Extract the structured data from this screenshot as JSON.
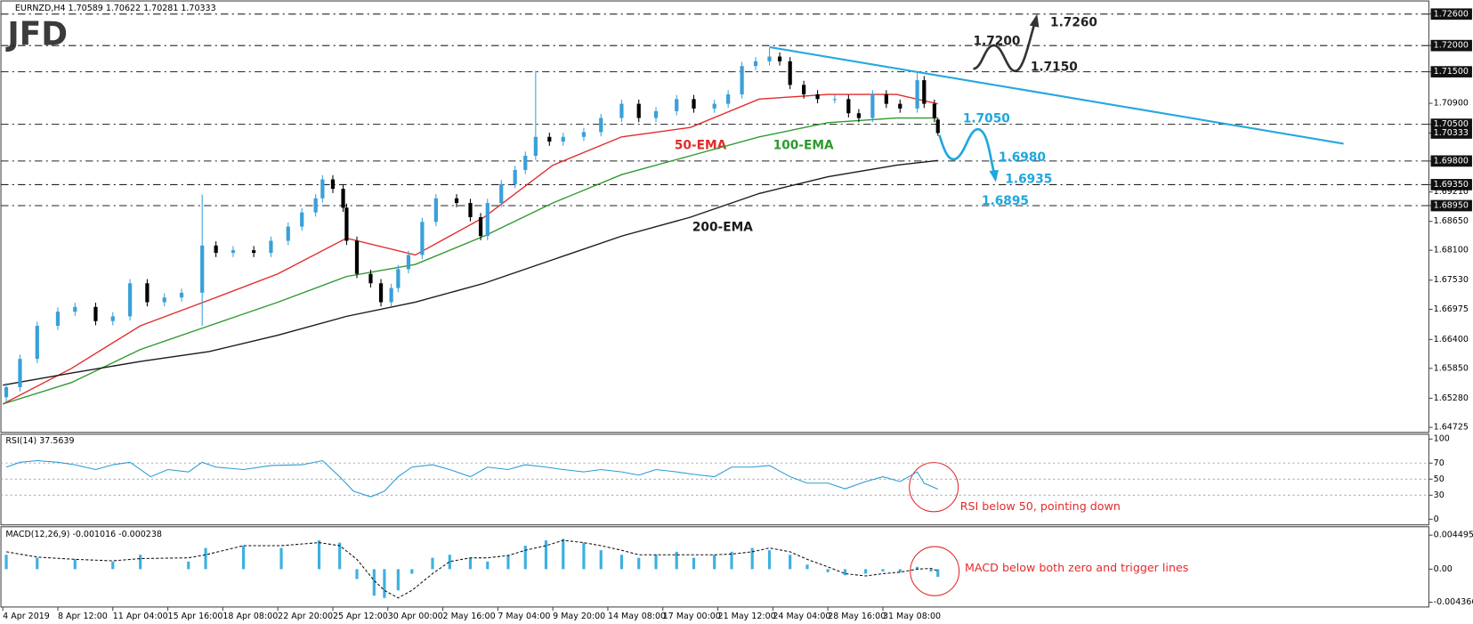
{
  "chart_data": [
    {
      "type": "candlestick",
      "title": "EURNZD,H4  1.70589 1.70622 1.70281 1.70333",
      "logo": "JFD",
      "up_color": "#3aa0d8",
      "down_color": "#000000",
      "xlim": [
        0,
        414
      ],
      "ylim": [
        1.6463,
        1.7285
      ],
      "yticks": [
        {
          "value": 1.726,
          "label": "1.72600",
          "boxed": true
        },
        {
          "value": 1.72,
          "label": "1.72000",
          "boxed": true
        },
        {
          "value": 1.715,
          "label": "1.71500",
          "boxed": true
        },
        {
          "value": 1.709,
          "label": "1.70900",
          "boxed": false
        },
        {
          "value": 1.705,
          "label": "1.70500",
          "boxed": true
        },
        {
          "value": 1.70333,
          "label": "1.70333",
          "boxed": true
        },
        {
          "value": 1.698,
          "label": "1.69800",
          "boxed": true
        },
        {
          "value": 1.6935,
          "label": "1.69350",
          "boxed": true
        },
        {
          "value": 1.6921,
          "label": "1.69210",
          "boxed": false
        },
        {
          "value": 1.6895,
          "label": "1.68950",
          "boxed": true
        },
        {
          "value": 1.6865,
          "label": "1.68650",
          "boxed": false
        },
        {
          "value": 1.681,
          "label": "1.68100",
          "boxed": false
        },
        {
          "value": 1.6753,
          "label": "1.67530",
          "boxed": false
        },
        {
          "value": 1.66975,
          "label": "1.66975",
          "boxed": false
        },
        {
          "value": 1.664,
          "label": "1.66400",
          "boxed": false
        },
        {
          "value": 1.6585,
          "label": "1.65850",
          "boxed": false
        },
        {
          "value": 1.6528,
          "label": "1.65280",
          "boxed": false
        },
        {
          "value": 1.64725,
          "label": "1.64725",
          "boxed": false
        }
      ],
      "x": [
        1,
        5,
        10,
        16,
        21,
        27,
        32,
        37,
        42,
        47,
        52,
        58,
        62,
        67,
        73,
        78,
        83,
        87,
        91,
        93,
        96,
        99,
        100,
        103,
        107,
        110,
        113,
        115,
        118,
        122,
        126,
        132,
        136,
        139,
        141,
        145,
        149,
        152,
        155,
        159,
        163,
        169,
        174,
        180,
        185,
        190,
        196,
        201,
        207,
        211,
        215,
        219,
        223,
        226,
        229,
        233,
        237,
        242,
        246,
        249,
        253,
        257,
        261,
        266,
        268,
        271,
        272
      ],
      "open": [
        1.653,
        1.6549,
        1.6603,
        1.6666,
        1.6693,
        1.6702,
        1.6675,
        1.6684,
        1.6747,
        1.6711,
        1.672,
        1.6729,
        1.6819,
        1.6805,
        1.681,
        1.6805,
        1.6828,
        1.6855,
        1.6882,
        1.6909,
        1.6945,
        1.6927,
        1.6891,
        1.6828,
        1.6765,
        1.6747,
        1.6711,
        1.6738,
        1.6774,
        1.6801,
        1.6864,
        1.6909,
        1.69,
        1.6873,
        1.6837,
        1.69,
        1.6936,
        1.6963,
        1.699,
        1.7026,
        1.7017,
        1.7026,
        1.7035,
        1.7062,
        1.7089,
        1.7062,
        1.7075,
        1.7098,
        1.708,
        1.7089,
        1.7107,
        1.7161,
        1.717,
        1.7179,
        1.717,
        1.7125,
        1.7107,
        1.7098,
        1.7098,
        1.7071,
        1.7062,
        1.7107,
        1.7089,
        1.708,
        1.7134,
        1.7089,
        1.70589
      ],
      "high": [
        1.6557,
        1.6611,
        1.6674,
        1.6701,
        1.671,
        1.671,
        1.6692,
        1.6755,
        1.6755,
        1.6728,
        1.6737,
        1.6916,
        1.6827,
        1.6818,
        1.6818,
        1.6836,
        1.6863,
        1.689,
        1.6917,
        1.6953,
        1.6953,
        1.6935,
        1.6899,
        1.6836,
        1.6773,
        1.6755,
        1.6746,
        1.6782,
        1.6809,
        1.6872,
        1.6917,
        1.6917,
        1.6908,
        1.6881,
        1.6908,
        1.6944,
        1.6971,
        1.6998,
        1.7152,
        1.7034,
        1.7034,
        1.7043,
        1.707,
        1.7097,
        1.7097,
        1.7083,
        1.7106,
        1.7106,
        1.7097,
        1.7115,
        1.7169,
        1.7178,
        1.7195,
        1.7187,
        1.7178,
        1.7133,
        1.7115,
        1.7106,
        1.7106,
        1.7079,
        1.7115,
        1.7115,
        1.7097,
        1.715,
        1.7142,
        1.7097,
        1.70622
      ],
      "low": [
        1.6522,
        1.6541,
        1.6595,
        1.6658,
        1.6685,
        1.6667,
        1.6667,
        1.6676,
        1.6703,
        1.6703,
        1.6712,
        1.6666,
        1.6797,
        1.6797,
        1.6797,
        1.6797,
        1.682,
        1.6847,
        1.6874,
        1.6901,
        1.6919,
        1.6883,
        1.682,
        1.6757,
        1.6739,
        1.6703,
        1.6703,
        1.673,
        1.6766,
        1.6793,
        1.6856,
        1.6892,
        1.6865,
        1.6829,
        1.6829,
        1.6892,
        1.6928,
        1.6955,
        1.6982,
        1.7009,
        1.7009,
        1.7018,
        1.7027,
        1.7054,
        1.7054,
        1.7054,
        1.7067,
        1.7072,
        1.7072,
        1.7081,
        1.7099,
        1.7153,
        1.7162,
        1.7162,
        1.7117,
        1.7099,
        1.709,
        1.709,
        1.7063,
        1.7054,
        1.7054,
        1.7081,
        1.7072,
        1.7072,
        1.7081,
        1.7054,
        1.70281
      ],
      "close": [
        1.6549,
        1.6603,
        1.6666,
        1.6693,
        1.6702,
        1.6675,
        1.6684,
        1.6747,
        1.6711,
        1.672,
        1.6729,
        1.6819,
        1.6805,
        1.681,
        1.6805,
        1.6828,
        1.6855,
        1.6882,
        1.6909,
        1.6945,
        1.6927,
        1.6891,
        1.6828,
        1.6765,
        1.6747,
        1.6711,
        1.6738,
        1.6774,
        1.6801,
        1.6864,
        1.6909,
        1.69,
        1.6873,
        1.6837,
        1.69,
        1.6936,
        1.6963,
        1.699,
        1.7026,
        1.7017,
        1.7026,
        1.7035,
        1.7062,
        1.7089,
        1.7062,
        1.7075,
        1.7098,
        1.708,
        1.7089,
        1.7107,
        1.7161,
        1.717,
        1.7179,
        1.717,
        1.7125,
        1.7107,
        1.7098,
        1.7098,
        1.7071,
        1.7062,
        1.7107,
        1.7089,
        1.708,
        1.7134,
        1.7089,
        1.7062,
        1.70333
      ],
      "ema_x": [
        0,
        20,
        40,
        60,
        80,
        100,
        120,
        140,
        160,
        180,
        200,
        220,
        240,
        260,
        272
      ],
      "ema_series": [
        {
          "name": "50-EMA",
          "color": "#e32b2b",
          "values": [
            1.6517,
            1.6585,
            1.6666,
            1.6715,
            1.6765,
            1.6833,
            1.6801,
            1.6873,
            1.6972,
            1.7026,
            1.7044,
            1.7098,
            1.7107,
            1.7107,
            1.7089
          ]
        },
        {
          "name": "100-EMA",
          "color": "#2e9a2e",
          "values": [
            1.6517,
            1.6558,
            1.6621,
            1.6666,
            1.6711,
            1.676,
            1.6783,
            1.6837,
            1.69,
            1.6954,
            1.699,
            1.7026,
            1.7053,
            1.7062,
            1.7062
          ]
        },
        {
          "name": "200-EMA",
          "color": "#1a1a1a",
          "values": [
            1.6553,
            1.6576,
            1.6598,
            1.6617,
            1.6648,
            1.6684,
            1.6711,
            1.6747,
            1.6792,
            1.6837,
            1.6873,
            1.6918,
            1.695,
            1.6972,
            1.6981
          ]
        }
      ],
      "trendline": {
        "color": "#27a7df",
        "x": [
          223,
          390
        ],
        "values": [
          1.7197,
          1.7013
        ]
      },
      "levels": [
        {
          "value": 1.726,
          "label": "1.7260",
          "color": "#222222"
        },
        {
          "value": 1.72,
          "label": "1.7200",
          "color": "#222222"
        },
        {
          "value": 1.715,
          "label": "1.7150",
          "color": "#222222"
        },
        {
          "value": 1.705,
          "label": "1.7050",
          "color": "#1ea7df"
        },
        {
          "value": 1.698,
          "label": "1.6980",
          "color": "#1ea7df"
        },
        {
          "value": 1.6935,
          "label": "1.6935",
          "color": "#1ea7df"
        },
        {
          "value": 1.6895,
          "label": "1.6895",
          "color": "#1ea7df"
        }
      ]
    },
    {
      "type": "line",
      "title": "RSI(14) 37.5639",
      "color": "#2a9bd6",
      "grid": true,
      "xlim": [
        0,
        414
      ],
      "ylim": [
        -7,
        106
      ],
      "yticks": [
        100,
        70,
        50,
        30,
        0
      ],
      "annotation": "RSI below 50, pointing down",
      "x": [
        1,
        5,
        10,
        16,
        21,
        27,
        32,
        37,
        43,
        48,
        54,
        58,
        62,
        70,
        78,
        87,
        93,
        98,
        102,
        107,
        111,
        115,
        119,
        125,
        130,
        136,
        141,
        147,
        152,
        158,
        163,
        169,
        174,
        180,
        185,
        190,
        196,
        201,
        207,
        212,
        218,
        223,
        229,
        234,
        240,
        245,
        251,
        256,
        261,
        266,
        268,
        272
      ],
      "values": [
        65,
        71,
        73,
        71,
        68,
        62,
        68,
        71,
        53,
        62,
        59,
        71,
        65,
        62,
        67,
        68,
        73,
        53,
        35,
        28,
        35,
        53,
        65,
        68,
        62,
        53,
        65,
        62,
        68,
        65,
        62,
        59,
        62,
        59,
        55,
        62,
        59,
        56,
        53,
        65,
        65,
        67,
        53,
        45,
        45,
        38,
        47,
        53,
        47,
        59,
        45,
        37.5639
      ]
    },
    {
      "type": "macd",
      "title": "MACD(12,26,9) -0.001016 -0.000238",
      "color": "#3db0e0",
      "signal_color": "#111111",
      "xlim": [
        0,
        414
      ],
      "ylim": [
        -0.005,
        0.0056
      ],
      "yticks": [
        0.004495,
        {
          "value": 0,
          "label": "0.00"
        },
        -0.004366
      ],
      "annotation": "MACD below both zero and trigger lines",
      "xticks": [
        {
          "value": 0,
          "label": "4 Apr 2019"
        },
        {
          "value": 16,
          "label": "8 Apr 12:00"
        },
        {
          "value": 32,
          "label": "11 Apr 04:00"
        },
        {
          "value": 48,
          "label": "15 Apr 16:00"
        },
        {
          "value": 64,
          "label": "18 Apr 08:00"
        },
        {
          "value": 80,
          "label": "22 Apr 20:00"
        },
        {
          "value": 96,
          "label": "25 Apr 12:00"
        },
        {
          "value": 112,
          "label": "30 Apr 00:00"
        },
        {
          "value": 128,
          "label": "2 May 16:00"
        },
        {
          "value": 144,
          "label": "7 May 04:00"
        },
        {
          "value": 160,
          "label": "9 May 20:00"
        },
        {
          "value": 176,
          "label": "14 May 08:00"
        },
        {
          "value": 192,
          "label": "17 May 00:00"
        },
        {
          "value": 208,
          "label": "21 May 12:00"
        },
        {
          "value": 224,
          "label": "24 May 04:00"
        },
        {
          "value": 240,
          "label": "28 May 16:00"
        },
        {
          "value": 256,
          "label": "31 May 08:00"
        }
      ],
      "x": [
        1,
        10,
        21,
        32,
        40,
        54,
        59,
        70,
        81,
        92,
        98,
        103,
        108,
        111,
        115,
        119,
        125,
        130,
        136,
        141,
        147,
        152,
        158,
        163,
        169,
        174,
        180,
        185,
        190,
        196,
        201,
        207,
        212,
        218,
        223,
        229,
        234,
        240,
        245,
        251,
        256,
        261,
        266,
        270,
        272
      ],
      "histogram": [
        0.0019,
        0.0015,
        0.0013,
        0.001,
        0.0019,
        0.001,
        0.0028,
        0.0031,
        0.0028,
        0.0038,
        0.0035,
        -0.0013,
        -0.0035,
        -0.0038,
        -0.0028,
        -0.0006,
        0.0015,
        0.0019,
        0.0015,
        0.001,
        0.0019,
        0.0031,
        0.0038,
        0.004,
        0.0035,
        0.0025,
        0.0019,
        0.0015,
        0.0019,
        0.0023,
        0.0015,
        0.0019,
        0.0023,
        0.0028,
        0.0025,
        0.0019,
        0.0006,
        -0.0004,
        -0.0008,
        -0.0006,
        -0.0003,
        -0.0004,
        0.0003,
        -0.0003,
        -0.001016
      ],
      "signal": [
        0.0023,
        0.0016,
        0.0013,
        0.0011,
        0.0014,
        0.0015,
        0.0019,
        0.0031,
        0.0031,
        0.0035,
        0.0031,
        0.0013,
        -0.0015,
        -0.0028,
        -0.0038,
        -0.0028,
        -0.0006,
        0.001,
        0.0015,
        0.0015,
        0.0018,
        0.0025,
        0.0031,
        0.0038,
        0.0035,
        0.0031,
        0.0025,
        0.0019,
        0.0019,
        0.0019,
        0.0019,
        0.0019,
        0.002,
        0.0023,
        0.0028,
        0.0023,
        0.0013,
        0.0003,
        -0.0006,
        -0.0009,
        -0.0006,
        -0.0004,
        0,
        0.0001,
        -0.000238
      ]
    }
  ]
}
